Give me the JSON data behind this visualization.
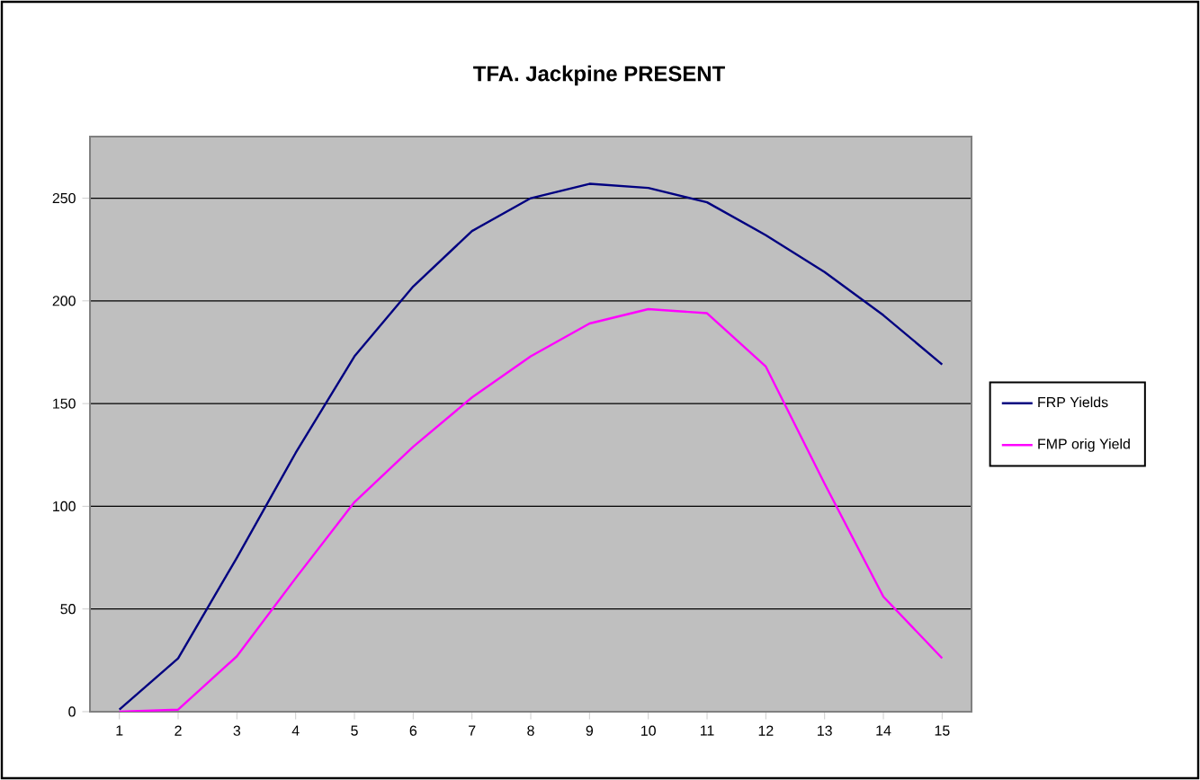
{
  "chart_data": {
    "type": "line",
    "title": "TFA.   Jackpine PRESENT",
    "categories": [
      "1",
      "2",
      "3",
      "4",
      "5",
      "6",
      "7",
      "8",
      "9",
      "10",
      "11",
      "12",
      "13",
      "14",
      "15"
    ],
    "series": [
      {
        "name": "FRP Yields",
        "color": "#000080",
        "values": [
          1,
          26,
          75,
          126,
          173,
          207,
          234,
          250,
          257,
          255,
          248,
          232,
          214,
          193,
          169
        ]
      },
      {
        "name": "FMP orig Yield",
        "color": "#ff00ff",
        "values": [
          0,
          1,
          27,
          65,
          102,
          129,
          153,
          173,
          189,
          196,
          194,
          168,
          111,
          56,
          26
        ]
      }
    ],
    "ylim": [
      0,
      280
    ],
    "yticks": [
      0,
      50,
      100,
      150,
      200,
      250
    ],
    "grid": "y",
    "legend": "right",
    "marker": "none",
    "line_style": "solid"
  }
}
